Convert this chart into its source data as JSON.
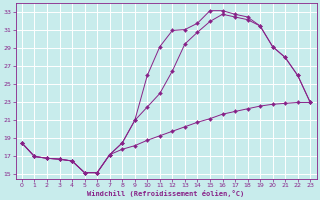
{
  "xlabel": "Windchill (Refroidissement éolien,°C)",
  "background_color": "#c8ecec",
  "grid_color": "#aadddd",
  "line_color": "#882288",
  "xlim": [
    -0.5,
    23.5
  ],
  "ylim": [
    14.5,
    34
  ],
  "xticks": [
    0,
    1,
    2,
    3,
    4,
    5,
    6,
    7,
    8,
    9,
    10,
    11,
    12,
    13,
    14,
    15,
    16,
    17,
    18,
    19,
    20,
    21,
    22,
    23
  ],
  "yticks": [
    15,
    17,
    19,
    21,
    23,
    25,
    27,
    29,
    31,
    33
  ],
  "series": [
    {
      "x": [
        0,
        1,
        2,
        3,
        4,
        5,
        6,
        7,
        8,
        9,
        10,
        11,
        12,
        13,
        14,
        15,
        16,
        17,
        18,
        19,
        20,
        21,
        22,
        23
      ],
      "y": [
        18.5,
        17.0,
        16.8,
        16.7,
        16.5,
        15.2,
        15.2,
        17.2,
        18.5,
        21.0,
        26.0,
        29.2,
        31.0,
        31.1,
        31.8,
        33.2,
        33.2,
        32.8,
        32.5,
        31.5,
        29.2,
        28.0,
        26.0,
        23.0
      ]
    },
    {
      "x": [
        0,
        1,
        2,
        3,
        4,
        5,
        6,
        7,
        8,
        9,
        10,
        11,
        12,
        13,
        14,
        15,
        16,
        17,
        18,
        19,
        20,
        21,
        22,
        23
      ],
      "y": [
        18.5,
        17.0,
        16.8,
        16.7,
        16.5,
        15.2,
        15.2,
        17.2,
        18.5,
        21.0,
        22.5,
        24.0,
        26.5,
        29.5,
        30.8,
        32.0,
        32.8,
        32.5,
        32.2,
        31.5,
        29.2,
        28.0,
        26.0,
        23.0
      ]
    },
    {
      "x": [
        0,
        1,
        2,
        3,
        4,
        5,
        6,
        7,
        8,
        9,
        10,
        11,
        12,
        13,
        14,
        15,
        16,
        17,
        18,
        19,
        20,
        21,
        22,
        23
      ],
      "y": [
        18.5,
        17.0,
        16.8,
        16.7,
        16.5,
        15.2,
        15.2,
        17.2,
        17.8,
        18.2,
        18.8,
        19.3,
        19.8,
        20.3,
        20.8,
        21.2,
        21.7,
        22.0,
        22.3,
        22.6,
        22.8,
        22.9,
        23.0,
        23.0
      ]
    }
  ]
}
